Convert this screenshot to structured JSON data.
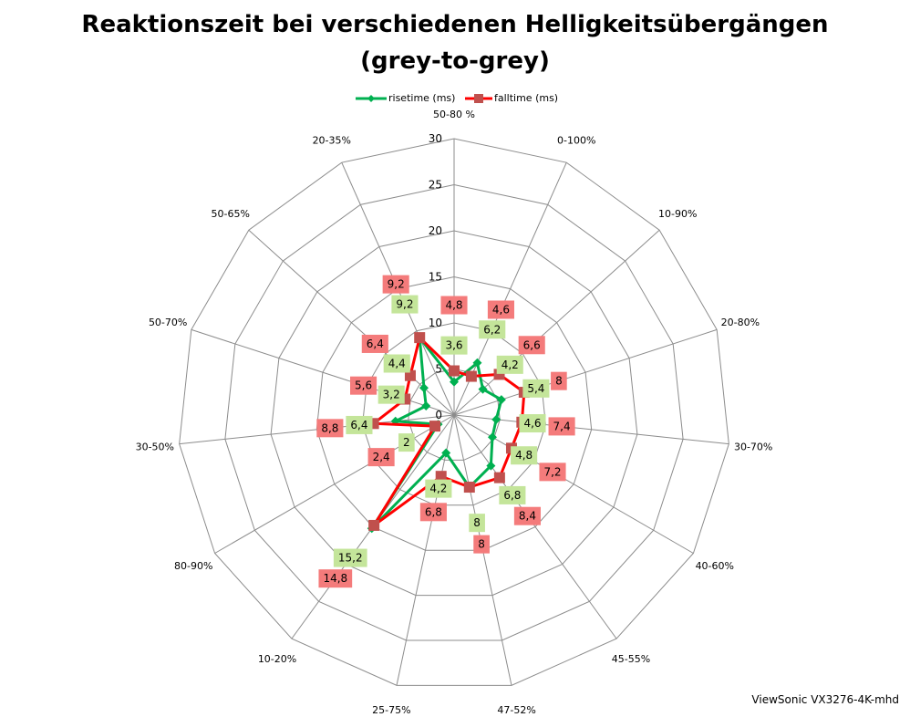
{
  "chart_data": {
    "type": "radar",
    "title_line1": "Reaktionszeit bei verschiedenen Helligkeitsübergängen",
    "title_line2": "(grey-to-grey)",
    "categories": [
      "50-80 %",
      "0-100%",
      "10-90%",
      "20-80%",
      "30-70%",
      "40-60%",
      "45-55%",
      "47-52%",
      "25-75%",
      "10-20%",
      "80-90%",
      "30-50%",
      "50-70%",
      "50-65%",
      "20-35%"
    ],
    "axis_range": [
      0,
      30
    ],
    "ticks": [
      0,
      5,
      10,
      15,
      20,
      25,
      30
    ],
    "tick_labels": [
      "0",
      "5",
      "10",
      "15",
      "20",
      "25",
      "30"
    ],
    "legend_position": "top",
    "series": [
      {
        "name": "risetime (ms)",
        "color": "#00B050",
        "marker": "diamond",
        "values": [
          3.6,
          6.2,
          4.2,
          5.4,
          4.6,
          4.8,
          6.8,
          8,
          4.2,
          15.2,
          2,
          6.4,
          3.2,
          4.4,
          9.2
        ],
        "labels": [
          "3,6",
          "6,2",
          "4,2",
          "5,4",
          "4,6",
          "4,8",
          "6,8",
          "8",
          "4,2",
          "15,2",
          "2",
          "6,4",
          "3,2",
          "4,4",
          "9,2"
        ]
      },
      {
        "name": "falltime (ms)",
        "color": "#FF0000",
        "marker": "square",
        "values": [
          4.8,
          4.6,
          6.6,
          8,
          7.4,
          7.2,
          8.4,
          8,
          6.8,
          14.8,
          2.4,
          8.8,
          5.6,
          6.4,
          9.2
        ],
        "labels": [
          "4,8",
          "4,6",
          "6,6",
          "8",
          "7,4",
          "7,2",
          "8,4",
          "8",
          "6,8",
          "14,8",
          "2,4",
          "8,8",
          "5,6",
          "6,4",
          "9,2"
        ]
      }
    ]
  },
  "footer": "ViewSonic VX3276-4K-mhd"
}
